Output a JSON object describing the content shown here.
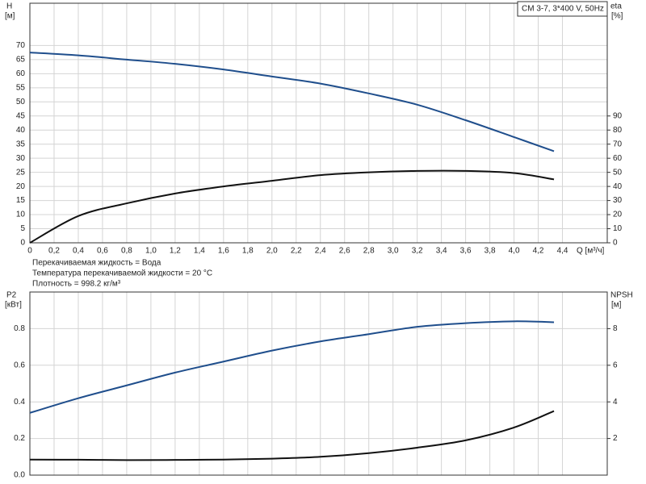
{
  "chart_data": [
    {
      "type": "line",
      "title": "CM 3-7, 3*400 V, 50Hz",
      "ylabel": "H",
      "yunit": "[м]",
      "y2label": "eta",
      "y2unit": "[%]",
      "xlabel": "Q [м³/ч]",
      "x": [
        0,
        0.4,
        0.8,
        1.2,
        1.6,
        2.0,
        2.4,
        2.8,
        3.2,
        3.6,
        4.0,
        4.33
      ],
      "series": [
        {
          "name": "H",
          "color": "#1f4e8c",
          "values": [
            67.5,
            66.5,
            65,
            63.5,
            61.5,
            59,
            56.5,
            53,
            49,
            43.5,
            37.5,
            32.5
          ]
        },
        {
          "name": "eta",
          "color": "#111111",
          "axis": "y2",
          "values": [
            0,
            19,
            28,
            35,
            40,
            44,
            48,
            50,
            51,
            51,
            49.5,
            45
          ]
        }
      ],
      "xlim": [
        0,
        4.77
      ],
      "xticks": [
        0,
        {
          "value": 0.2,
          "label": "0,2"
        },
        {
          "value": 0.4,
          "label": "0,4"
        },
        {
          "value": 0.6,
          "label": "0,6"
        },
        {
          "value": 0.8,
          "label": "0,8"
        },
        {
          "value": 1.0,
          "label": "1,0"
        },
        {
          "value": 1.2,
          "label": "1,2"
        },
        {
          "value": 1.4,
          "label": "1,4"
        },
        {
          "value": 1.6,
          "label": "1,6"
        },
        {
          "value": 1.8,
          "label": "1,8"
        },
        {
          "value": 2.0,
          "label": "2,0"
        },
        {
          "value": 2.2,
          "label": "2,2"
        },
        {
          "value": 2.4,
          "label": "2,4"
        },
        {
          "value": 2.6,
          "label": "2,6"
        },
        {
          "value": 2.8,
          "label": "2,8"
        },
        {
          "value": 3.0,
          "label": "3,0"
        },
        {
          "value": 3.2,
          "label": "3,2"
        },
        {
          "value": 3.4,
          "label": "3,4"
        },
        {
          "value": 3.6,
          "label": "3,6"
        },
        {
          "value": 3.8,
          "label": "3,8"
        },
        {
          "value": 4.0,
          "label": "4,0"
        },
        {
          "value": 4.2,
          "label": "4,2"
        },
        {
          "value": 4.4,
          "label": "4,4"
        }
      ],
      "ylim": [
        0,
        85
      ],
      "yticks": [
        0,
        5,
        10,
        15,
        20,
        25,
        30,
        35,
        40,
        45,
        50,
        55,
        60,
        65,
        70
      ],
      "y2lim": [
        0,
        170
      ],
      "y2ticks": [
        0,
        10,
        20,
        30,
        40,
        50,
        60,
        70,
        80,
        90
      ],
      "grid": true,
      "annotations": [
        "Перекачиваемая жидкость = Вода",
        "Температура перекачиваемой жидкости = 20 °C",
        "Плотность = 998.2 кг/м³"
      ]
    },
    {
      "type": "line",
      "ylabel": "P2",
      "yunit": "[кВт]",
      "y2label": "NPSH",
      "y2unit": "[м]",
      "x": [
        0,
        0.4,
        0.8,
        1.2,
        1.6,
        2.0,
        2.4,
        2.8,
        3.2,
        3.6,
        4.0,
        4.33
      ],
      "series": [
        {
          "name": "P2",
          "color": "#1f4e8c",
          "values": [
            0.34,
            0.42,
            0.49,
            0.56,
            0.62,
            0.68,
            0.73,
            0.77,
            0.81,
            0.83,
            0.84,
            0.835
          ]
        },
        {
          "name": "NPSH",
          "color": "#111111",
          "axis": "y2",
          "values": [
            0.85,
            0.84,
            0.82,
            0.83,
            0.85,
            0.9,
            1.0,
            1.2,
            1.5,
            1.9,
            2.6,
            3.5
          ]
        }
      ],
      "xlim": [
        0,
        4.77
      ],
      "xticks": [
        0,
        0.2,
        0.4,
        0.6,
        0.8,
        1.0,
        1.2,
        1.4,
        1.6,
        1.8,
        2.0,
        2.2,
        2.4,
        2.6,
        2.8,
        3.0,
        3.2,
        3.4,
        3.6,
        3.8,
        4.0,
        4.2,
        4.4
      ],
      "ylim": [
        0,
        1.0
      ],
      "yticks": [
        {
          "value": 0,
          "label": "0.0"
        },
        0.2,
        0.4,
        0.6,
        0.8
      ],
      "y2lim": [
        0,
        10
      ],
      "y2ticks": [
        2,
        4,
        6,
        8
      ],
      "grid": true
    }
  ]
}
